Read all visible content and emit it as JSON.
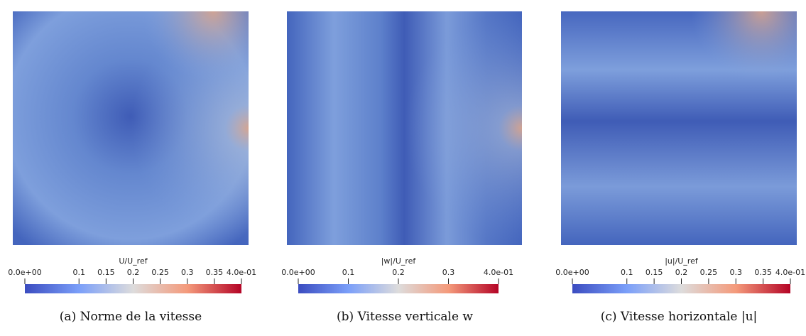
{
  "panels": [
    {
      "colorbar": {
        "title": "U/U_ref",
        "lim": [
          0,
          0.4
        ],
        "ticks": [
          {
            "value": 0,
            "label": "0.0e+00"
          },
          0.1,
          0.15,
          0.2,
          0.25,
          0.3,
          0.35,
          {
            "value": 0.4,
            "label": "4.0e-01"
          }
        ]
      },
      "caption": "(a) Norme de la vitesse"
    },
    {
      "colorbar": {
        "title": "|w|/U_ref",
        "lim": [
          0,
          0.4
        ],
        "ticks": [
          {
            "value": 0,
            "label": "0.0e+00"
          },
          0.1,
          0.2,
          0.3,
          {
            "value": 0.4,
            "label": "4.0e-01"
          }
        ]
      },
      "caption": "(b) Vitesse verticale w"
    },
    {
      "colorbar": {
        "title": "|u|/U_ref",
        "lim": [
          0,
          0.4
        ],
        "ticks": [
          {
            "value": 0,
            "label": "0.0e+00"
          },
          0.1,
          0.15,
          0.2,
          0.25,
          0.3,
          0.35,
          {
            "value": 0.4,
            "label": "4.0e-01"
          }
        ]
      },
      "caption": "(c) Vitesse horizontale |u|"
    }
  ]
}
